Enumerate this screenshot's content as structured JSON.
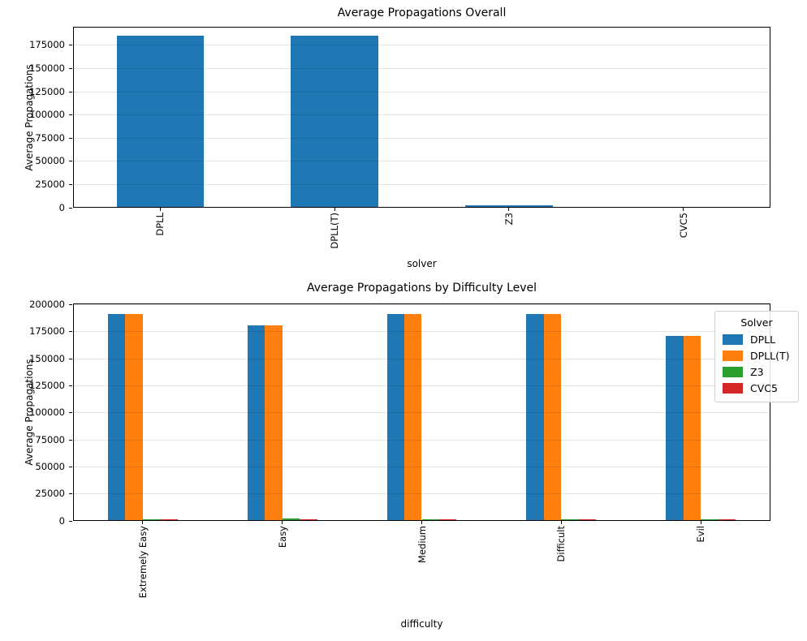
{
  "figure": {
    "background": "#ffffff"
  },
  "colors": {
    "dpll": "#1f77b4",
    "dpll_t": "#ff7f0e",
    "z3": "#2ca02c",
    "cvc5": "#d62728",
    "grid": "#e6e6e6",
    "spine": "#000000"
  },
  "chart_data": [
    {
      "type": "bar",
      "title": "Average Propagations Overall",
      "xlabel": "solver",
      "ylabel": "Average Propagations",
      "categories": [
        "DPLL",
        "DPLL(T)",
        "Z3",
        "CVC5"
      ],
      "series": [
        {
          "name": "solver",
          "color": "#1f77b4",
          "values": [
            185000,
            185000,
            2500,
            1200
          ]
        }
      ],
      "ylim": [
        0,
        195000
      ],
      "yticks": [
        0,
        25000,
        50000,
        75000,
        100000,
        125000,
        150000,
        175000
      ],
      "grid": true,
      "bar_group_fraction": 0.5,
      "xtick_rotation": 90,
      "legend": null
    },
    {
      "type": "bar",
      "title": "Average Propagations by Difficulty Level",
      "xlabel": "difficulty",
      "ylabel": "Average Propagations",
      "categories": [
        "Extremely Easy",
        "Easy",
        "Medium",
        "Difficult",
        "Evil"
      ],
      "series": [
        {
          "name": "DPLL",
          "color": "#1f77b4",
          "values": [
            191000,
            181000,
            191000,
            191000,
            171000
          ]
        },
        {
          "name": "DPLL(T)",
          "color": "#ff7f0e",
          "values": [
            191000,
            181000,
            191000,
            191000,
            171000
          ]
        },
        {
          "name": "Z3",
          "color": "#2ca02c",
          "values": [
            1500,
            2300,
            1400,
            1500,
            1400
          ]
        },
        {
          "name": "CVC5",
          "color": "#d62728",
          "values": [
            1400,
            1300,
            1300,
            1500,
            1300
          ]
        }
      ],
      "ylim": [
        0,
        201000
      ],
      "yticks": [
        0,
        25000,
        50000,
        75000,
        100000,
        125000,
        150000,
        175000,
        200000
      ],
      "grid": true,
      "bar_group_fraction": 0.5,
      "xtick_rotation": 90,
      "legend": {
        "title": "Solver",
        "position": "upper right"
      }
    }
  ]
}
